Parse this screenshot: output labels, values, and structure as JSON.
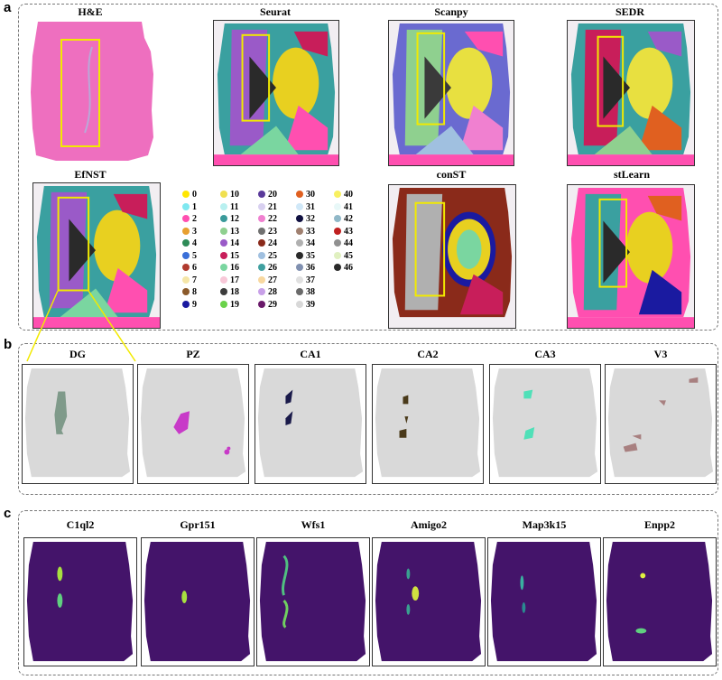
{
  "panels": {
    "a": {
      "letter": "a",
      "titles": {
        "he": "H&E",
        "seurat": "Seurat",
        "scanpy": "Scanpy",
        "sedr": "SEDR",
        "efnst": "EfNST",
        "const": "conST",
        "stlearn": "stLearn"
      },
      "legend": [
        {
          "label": "0",
          "color": "#ffe600"
        },
        {
          "label": "1",
          "color": "#7fe8f0"
        },
        {
          "label": "2",
          "color": "#ff4fb0"
        },
        {
          "label": "3",
          "color": "#e8a030"
        },
        {
          "label": "4",
          "color": "#2e8b57"
        },
        {
          "label": "5",
          "color": "#3a6fd8"
        },
        {
          "label": "6",
          "color": "#b03a2e"
        },
        {
          "label": "7",
          "color": "#f5e6a8"
        },
        {
          "label": "8",
          "color": "#8b5a2b"
        },
        {
          "label": "9",
          "color": "#1a1aa0"
        },
        {
          "label": "10",
          "color": "#f0e050"
        },
        {
          "label": "11",
          "color": "#b8f0f0"
        },
        {
          "label": "12",
          "color": "#3a9a9a"
        },
        {
          "label": "13",
          "color": "#8fd08f"
        },
        {
          "label": "14",
          "color": "#9a5ac8"
        },
        {
          "label": "15",
          "color": "#c81e5a"
        },
        {
          "label": "16",
          "color": "#7ad6a0"
        },
        {
          "label": "17",
          "color": "#f8c8d8"
        },
        {
          "label": "18",
          "color": "#3c3c3c"
        },
        {
          "label": "19",
          "color": "#6ad24a"
        },
        {
          "label": "20",
          "color": "#5a3a9a"
        },
        {
          "label": "21",
          "color": "#d8d0f0"
        },
        {
          "label": "22",
          "color": "#f080d0"
        },
        {
          "label": "23",
          "color": "#707070"
        },
        {
          "label": "24",
          "color": "#8a2a1a"
        },
        {
          "label": "25",
          "color": "#a0c0e0"
        },
        {
          "label": "26",
          "color": "#40a0a0"
        },
        {
          "label": "27",
          "color": "#f8d8a0"
        },
        {
          "label": "28",
          "color": "#c8a0e8"
        },
        {
          "label": "29",
          "color": "#6a1a6a"
        },
        {
          "label": "30",
          "color": "#e06020"
        },
        {
          "label": "31",
          "color": "#d0e8f8"
        },
        {
          "label": "32",
          "color": "#101040"
        },
        {
          "label": "33",
          "color": "#a08070"
        },
        {
          "label": "34",
          "color": "#b0b0b0"
        },
        {
          "label": "35",
          "color": "#2a2a2a"
        },
        {
          "label": "36",
          "color": "#8090b0"
        },
        {
          "label": "37",
          "color": "#e0e0e0"
        },
        {
          "label": "38",
          "color": "#6a6a6a"
        },
        {
          "label": "39",
          "color": "#d8d8d8"
        },
        {
          "label": "40",
          "color": "#f8f060"
        },
        {
          "label": "41",
          "color": "#e8f8f8"
        },
        {
          "label": "42",
          "color": "#90b8c8"
        },
        {
          "label": "43",
          "color": "#c02020"
        },
        {
          "label": "44",
          "color": "#909090"
        },
        {
          "label": "45",
          "color": "#e0f0c0"
        },
        {
          "label": "46",
          "color": "#2a2a2a"
        }
      ]
    },
    "b": {
      "letter": "b",
      "regions": [
        {
          "key": "dg",
          "label": "DG",
          "color": "#7f9a8a"
        },
        {
          "key": "pz",
          "label": "PZ",
          "color": "#c83ac8"
        },
        {
          "key": "ca1",
          "label": "CA1",
          "color": "#1a1a4a"
        },
        {
          "key": "ca2",
          "label": "CA2",
          "color": "#4a3a1a"
        },
        {
          "key": "ca3",
          "label": "CA3",
          "color": "#50e0b8"
        },
        {
          "key": "v3",
          "label": "V3",
          "color": "#a88080"
        }
      ]
    },
    "c": {
      "letter": "c",
      "genes": [
        "C1ql2",
        "Gpr151",
        "Wfs1",
        "Amigo2",
        "Map3k15",
        "Enpp2"
      ]
    }
  }
}
